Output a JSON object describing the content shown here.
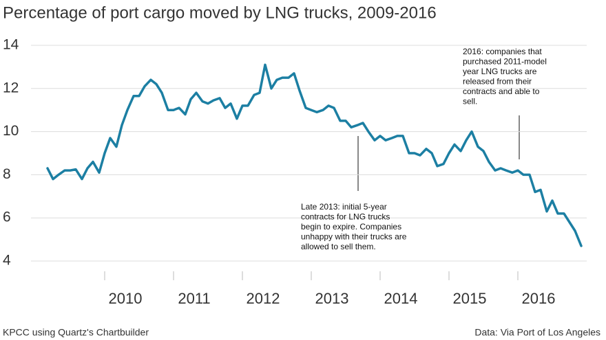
{
  "chart_data": {
    "type": "line",
    "title": "Percentage of port cargo moved by LNG trucks, 2009-2016",
    "source_left": "KPCC using Quartz's Chartbuilder",
    "source_right": "Data: Via Port of Los Angeles",
    "x": [
      2009.17,
      2009.25,
      2009.33,
      2009.42,
      2009.5,
      2009.58,
      2009.67,
      2009.75,
      2009.83,
      2009.92,
      2010,
      2010.08,
      2010.17,
      2010.25,
      2010.33,
      2010.42,
      2010.5,
      2010.58,
      2010.67,
      2010.75,
      2010.83,
      2010.92,
      2011,
      2011.08,
      2011.17,
      2011.25,
      2011.33,
      2011.42,
      2011.5,
      2011.58,
      2011.67,
      2011.75,
      2011.83,
      2011.92,
      2012,
      2012.08,
      2012.17,
      2012.25,
      2012.33,
      2012.42,
      2012.5,
      2012.58,
      2012.67,
      2012.75,
      2012.83,
      2012.92,
      2013,
      2013.08,
      2013.17,
      2013.25,
      2013.33,
      2013.42,
      2013.5,
      2013.58,
      2013.67,
      2013.75,
      2013.83,
      2013.92,
      2014,
      2014.08,
      2014.17,
      2014.25,
      2014.33,
      2014.42,
      2014.5,
      2014.58,
      2014.67,
      2014.75,
      2014.83,
      2014.92,
      2015,
      2015.08,
      2015.17,
      2015.25,
      2015.33,
      2015.42,
      2015.5,
      2015.58,
      2015.67,
      2015.75,
      2015.83,
      2015.92,
      2016,
      2016.08,
      2016.17,
      2016.25,
      2016.33,
      2016.42,
      2016.5,
      2016.58,
      2016.67,
      2016.75,
      2016.83,
      2016.92
    ],
    "series": [
      {
        "color": "#1c7fa3",
        "values": [
          8.3,
          7.8,
          8.0,
          8.2,
          8.2,
          8.25,
          7.8,
          8.3,
          8.6,
          8.1,
          9.0,
          9.7,
          9.3,
          10.3,
          11.0,
          11.65,
          11.65,
          12.1,
          12.4,
          12.2,
          11.8,
          11.0,
          11.0,
          11.1,
          10.8,
          11.5,
          11.8,
          11.4,
          11.3,
          11.45,
          11.55,
          11.1,
          11.3,
          10.6,
          11.2,
          11.2,
          11.7,
          11.8,
          13.1,
          12.0,
          12.4,
          12.5,
          12.5,
          12.7,
          11.9,
          11.1,
          11.0,
          10.9,
          11.0,
          11.2,
          11.1,
          10.5,
          10.5,
          10.2,
          10.3,
          10.4,
          10.0,
          9.6,
          9.8,
          9.6,
          9.7,
          9.8,
          9.8,
          9.0,
          9.0,
          8.9,
          9.2,
          9.0,
          8.4,
          8.5,
          9.0,
          9.4,
          9.1,
          9.6,
          10.0,
          9.3,
          9.1,
          8.6,
          8.2,
          8.3,
          8.2,
          8.1,
          8.2,
          8.0,
          8.0,
          7.2,
          7.3,
          6.3,
          6.8,
          6.2,
          6.2,
          5.8,
          5.4,
          4.7
        ]
      }
    ],
    "xlim": [
      2008.48,
      2017.0
    ],
    "xticks": [
      2010,
      2011,
      2012,
      2013,
      2014,
      2015,
      2016
    ],
    "ylim": [
      4,
      14
    ],
    "yticks": [
      4,
      6,
      8,
      10,
      12,
      14
    ],
    "grid": true,
    "annotations": [
      {
        "lines": [
          "Late 2013: initial 5-year",
          "contracts for LNG trucks",
          "begin to expire. Companies",
          "unhappy with their trucks are",
          "allowed to sell them."
        ]
      },
      {
        "lines": [
          "2016: companies that",
          "purchased 2011-model",
          "year LNG trucks are",
          "released from their",
          "contracts and able to",
          "sell."
        ]
      }
    ]
  }
}
